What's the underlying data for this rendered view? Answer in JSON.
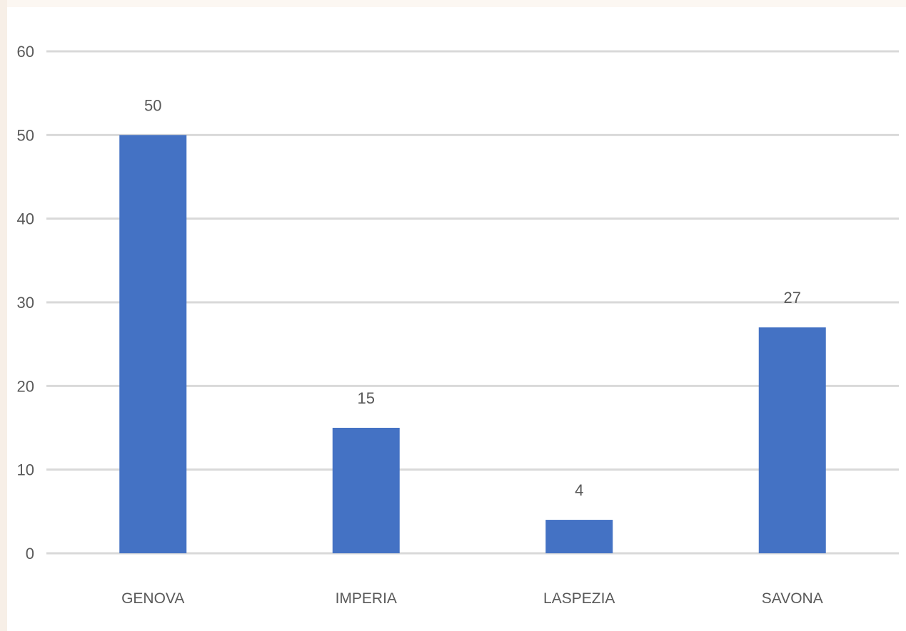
{
  "chart_data": {
    "type": "bar",
    "categories": [
      "GENOVA",
      "IMPERIA",
      "LASPEZIA",
      "SAVONA"
    ],
    "values": [
      50,
      15,
      4,
      27
    ],
    "data_labels": [
      "50",
      "15",
      "4",
      "27"
    ],
    "title": "",
    "xlabel": "",
    "ylabel": "",
    "ylim": [
      0,
      60
    ],
    "yticks": [
      0,
      10,
      20,
      30,
      40,
      50,
      60
    ],
    "ytick_labels": [
      "0",
      "10",
      "20",
      "30",
      "40",
      "50",
      "60"
    ],
    "grid": true,
    "legend": "none",
    "colors": {
      "bar": "#4472c4",
      "grid": "#d9d9d9",
      "text": "#595959"
    }
  }
}
